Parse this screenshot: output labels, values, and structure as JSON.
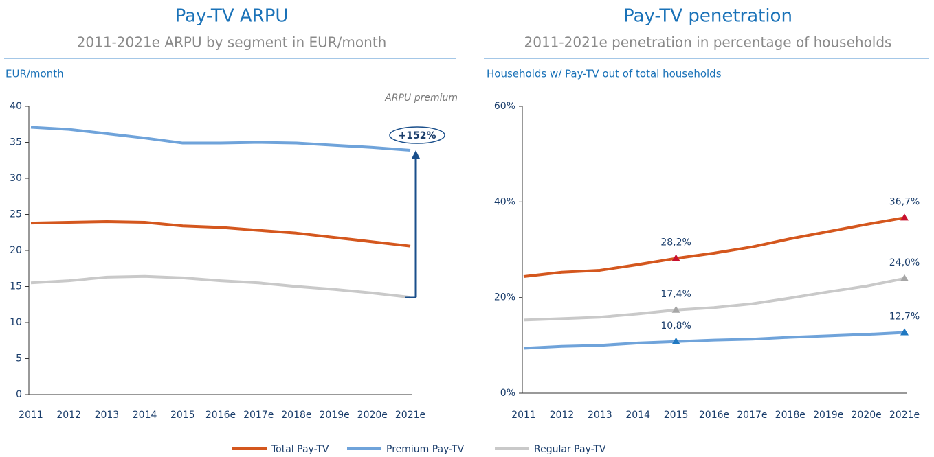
{
  "chart_data": [
    {
      "type": "line",
      "title": "Pay-TV ARPU",
      "subtitle": "2011-2021e ARPU by segment in EUR/month",
      "y_label": "EUR/month",
      "annotations": [
        "ARPU premium",
        "+152%"
      ],
      "categories": [
        "2011",
        "2012",
        "2013",
        "2014",
        "2015",
        "2016e",
        "2017e",
        "2018e",
        "2019e",
        "2020e",
        "2021e"
      ],
      "series": [
        {
          "name": "Total Pay-TV",
          "color": "#d4571e",
          "values": [
            23.8,
            23.9,
            24.0,
            23.9,
            23.4,
            23.2,
            22.8,
            22.4,
            21.8,
            21.2,
            20.6
          ]
        },
        {
          "name": "Premium Pay-TV",
          "color": "#6fa3da",
          "values": [
            37.1,
            36.8,
            36.2,
            35.6,
            34.9,
            34.9,
            35.0,
            34.9,
            34.6,
            34.3,
            33.9
          ]
        },
        {
          "name": "Regular Pay-TV",
          "color": "#c9c9c9",
          "values": [
            15.5,
            15.8,
            16.3,
            16.4,
            16.2,
            15.8,
            15.5,
            15.0,
            14.6,
            14.1,
            13.5
          ]
        }
      ],
      "ylim": [
        0,
        40
      ],
      "yticks": [
        0,
        5,
        10,
        15,
        20,
        25,
        30,
        35,
        40
      ]
    },
    {
      "type": "line",
      "title": "Pay-TV penetration",
      "subtitle": "2011-2021e penetration in percentage of households",
      "y_label": "Households w/ Pay-TV out of total households",
      "categories": [
        "2011",
        "2012",
        "2013",
        "2014",
        "2015",
        "2016e",
        "2017e",
        "2018e",
        "2019e",
        "2020e",
        "2021e"
      ],
      "series": [
        {
          "name": "Total Pay-TV",
          "color": "#d4571e",
          "marker_color": "#c8102e",
          "values": [
            24.4,
            25.3,
            25.7,
            26.9,
            28.2,
            29.3,
            30.6,
            32.3,
            33.8,
            35.3,
            36.7
          ],
          "value_labels": [
            null,
            null,
            null,
            null,
            "28,2%",
            null,
            null,
            null,
            null,
            null,
            "36,7%"
          ]
        },
        {
          "name": "Premium Pay-TV",
          "color": "#6fa3da",
          "marker_color": "#1f78c1",
          "values": [
            9.4,
            9.8,
            10.0,
            10.5,
            10.8,
            11.1,
            11.3,
            11.7,
            12.0,
            12.3,
            12.7
          ],
          "value_labels": [
            null,
            null,
            null,
            null,
            "10,8%",
            null,
            null,
            null,
            null,
            null,
            "12,7%"
          ]
        },
        {
          "name": "Regular Pay-TV",
          "color": "#c9c9c9",
          "marker_color": "#a6a6a6",
          "values": [
            15.3,
            15.6,
            15.9,
            16.6,
            17.4,
            17.9,
            18.7,
            19.9,
            21.2,
            22.4,
            24.0
          ],
          "value_labels": [
            null,
            null,
            null,
            null,
            "17,4%",
            null,
            null,
            null,
            null,
            null,
            "24,0%"
          ]
        }
      ],
      "ylim": [
        0,
        60
      ],
      "yticks": [
        {
          "value": 0,
          "label": "0%"
        },
        {
          "value": 20,
          "label": "20%"
        },
        {
          "value": 40,
          "label": "40%"
        },
        {
          "value": 60,
          "label": "60%"
        }
      ]
    }
  ]
}
